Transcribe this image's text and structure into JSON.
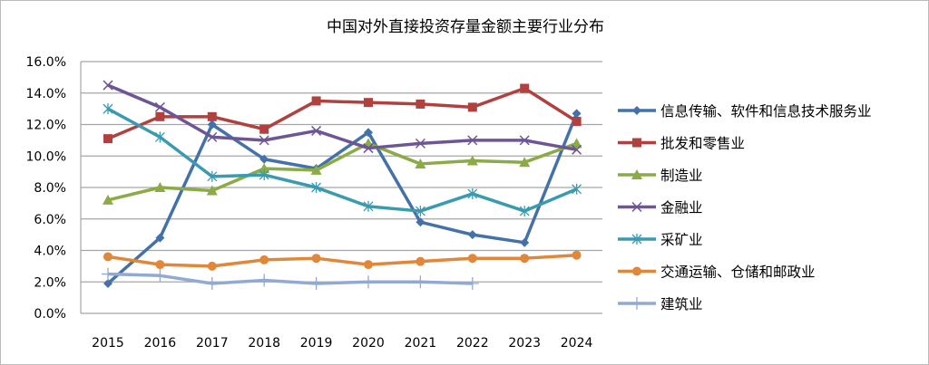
{
  "chart_data": {
    "type": "line",
    "title": "中国对外直接投资存量金额主要行业分布",
    "xlabel": "",
    "ylabel": "",
    "ylim": [
      0,
      16
    ],
    "y_ticks": [
      "0.0%",
      "2.0%",
      "4.0%",
      "6.0%",
      "8.0%",
      "10.0%",
      "12.0%",
      "14.0%",
      "16.0%"
    ],
    "grid": "horizontal",
    "legend_position": "right",
    "categories": [
      "2015",
      "2016",
      "2017",
      "2018",
      "2019",
      "2020",
      "2021",
      "2022",
      "2023",
      "2024"
    ],
    "series": [
      {
        "name": "信息传输、软件和信息技术服务业",
        "color": "#4472a8",
        "marker": "diamond",
        "values": [
          1.9,
          4.8,
          12.0,
          9.8,
          9.2,
          11.5,
          5.8,
          5.0,
          4.5,
          12.7
        ]
      },
      {
        "name": "批发和零售业",
        "color": "#b0413e",
        "marker": "square",
        "values": [
          11.1,
          12.5,
          12.5,
          11.7,
          13.5,
          13.4,
          13.3,
          13.1,
          14.3,
          12.2
        ]
      },
      {
        "name": "制造业",
        "color": "#8aab46",
        "marker": "triangle",
        "values": [
          7.2,
          8.0,
          7.8,
          9.2,
          9.1,
          10.8,
          9.5,
          9.7,
          9.6,
          10.8
        ]
      },
      {
        "name": "金融业",
        "color": "#6e5596",
        "marker": "x",
        "values": [
          14.5,
          13.1,
          11.2,
          11.0,
          11.6,
          10.5,
          10.8,
          11.0,
          11.0,
          10.4
        ]
      },
      {
        "name": "采矿业",
        "color": "#3a9ab0",
        "marker": "star",
        "values": [
          13.0,
          11.2,
          8.7,
          8.8,
          8.0,
          6.8,
          6.5,
          7.6,
          6.5,
          7.9
        ]
      },
      {
        "name": "交通运输、仓储和邮政业",
        "color": "#e0873a",
        "marker": "circle",
        "values": [
          3.6,
          3.1,
          3.0,
          3.4,
          3.5,
          3.1,
          3.3,
          3.5,
          3.5,
          3.7
        ]
      },
      {
        "name": "建筑业",
        "color": "#92a9d4",
        "marker": "plus",
        "values": [
          2.5,
          2.4,
          1.9,
          2.1,
          1.9,
          2.0,
          2.0,
          1.9,
          null,
          null
        ]
      }
    ]
  }
}
